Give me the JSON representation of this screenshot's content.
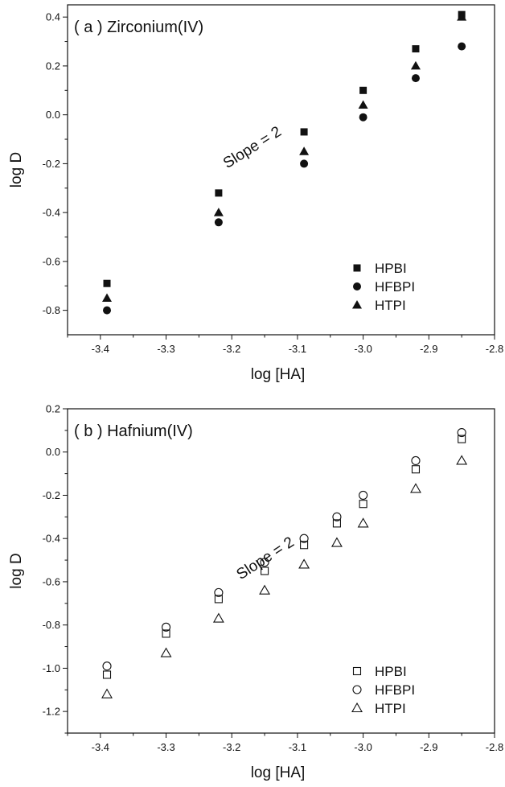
{
  "chart_data": [
    {
      "type": "scatter",
      "title": "( a ) Zirconium(IV)",
      "xlabel": "log [HA]",
      "ylabel": "log D",
      "xlim": [
        -3.45,
        -2.8
      ],
      "ylim": [
        -0.9,
        0.45
      ],
      "xticks": [
        -3.4,
        -3.3,
        -3.2,
        -3.1,
        -3.0,
        -2.9,
        -2.8
      ],
      "xtick_labels": [
        "-3.4",
        "-3.3",
        "-3.2",
        "-3.1",
        "-3.0",
        "-2.9",
        "-2.8"
      ],
      "yticks": [
        -0.8,
        -0.6,
        -0.4,
        -0.2,
        0.0,
        0.2,
        0.4
      ],
      "ytick_labels": [
        "-0.8",
        "-0.6",
        "-0.4",
        "-0.2",
        "0.0",
        "0.2",
        "0.4"
      ],
      "grid": false,
      "legend_position": "bottom-right",
      "annotation": {
        "text": "Slope = 2",
        "x": -3.165,
        "y": -0.15,
        "angle_deg": -32
      },
      "series": [
        {
          "name": "HPBI",
          "marker": "square",
          "filled": true,
          "x": [
            -3.39,
            -3.22,
            -3.09,
            -3.0,
            -2.92,
            -2.85
          ],
          "y": [
            -0.69,
            -0.32,
            -0.07,
            0.1,
            0.27,
            0.41
          ]
        },
        {
          "name": "HFBPI",
          "marker": "circle",
          "filled": true,
          "x": [
            -3.39,
            -3.22,
            -3.09,
            -3.0,
            -2.92,
            -2.85
          ],
          "y": [
            -0.8,
            -0.44,
            -0.2,
            -0.01,
            0.15,
            0.28
          ]
        },
        {
          "name": "HTPI",
          "marker": "triangle",
          "filled": true,
          "x": [
            -3.39,
            -3.22,
            -3.09,
            -3.0,
            -2.92,
            -2.85
          ],
          "y": [
            -0.75,
            -0.4,
            -0.15,
            0.04,
            0.2,
            0.4
          ]
        }
      ]
    },
    {
      "type": "scatter",
      "title": "( b ) Hafnium(IV)",
      "xlabel": "log [HA]",
      "ylabel": "log D",
      "xlim": [
        -3.45,
        -2.8
      ],
      "ylim": [
        -1.3,
        0.2
      ],
      "xticks": [
        -3.4,
        -3.3,
        -3.2,
        -3.1,
        -3.0,
        -2.9,
        -2.8
      ],
      "xtick_labels": [
        "-3.4",
        "-3.3",
        "-3.2",
        "-3.1",
        "-3.0",
        "-2.9",
        "-2.8"
      ],
      "yticks": [
        -1.2,
        -1.0,
        -0.8,
        -0.6,
        -0.4,
        -0.2,
        0.0,
        0.2
      ],
      "ytick_labels": [
        "-1.2",
        "-1.0",
        "-0.8",
        "-0.6",
        "-0.4",
        "-0.2",
        "0.0",
        "0.2"
      ],
      "grid": false,
      "legend_position": "bottom-right",
      "annotation": {
        "text": "Slope = 2",
        "x": -3.145,
        "y": -0.51,
        "angle_deg": -33
      },
      "series": [
        {
          "name": "HPBI",
          "marker": "square",
          "filled": false,
          "x": [
            -3.39,
            -3.3,
            -3.22,
            -3.15,
            -3.09,
            -3.04,
            -3.0,
            -2.92,
            -2.85
          ],
          "y": [
            -1.03,
            -0.84,
            -0.68,
            -0.55,
            -0.43,
            -0.33,
            -0.24,
            -0.08,
            0.06
          ]
        },
        {
          "name": "HFBPI",
          "marker": "circle",
          "filled": false,
          "x": [
            -3.39,
            -3.3,
            -3.22,
            -3.15,
            -3.09,
            -3.04,
            -3.0,
            -2.92,
            -2.85
          ],
          "y": [
            -0.99,
            -0.81,
            -0.65,
            -0.51,
            -0.4,
            -0.3,
            -0.2,
            -0.04,
            0.09
          ]
        },
        {
          "name": "HTPI",
          "marker": "triangle",
          "filled": false,
          "x": [
            -3.39,
            -3.3,
            -3.22,
            -3.15,
            -3.09,
            -3.04,
            -3.0,
            -2.92,
            -2.85
          ],
          "y": [
            -1.12,
            -0.93,
            -0.77,
            -0.64,
            -0.52,
            -0.42,
            -0.33,
            -0.17,
            -0.04
          ]
        }
      ]
    }
  ]
}
